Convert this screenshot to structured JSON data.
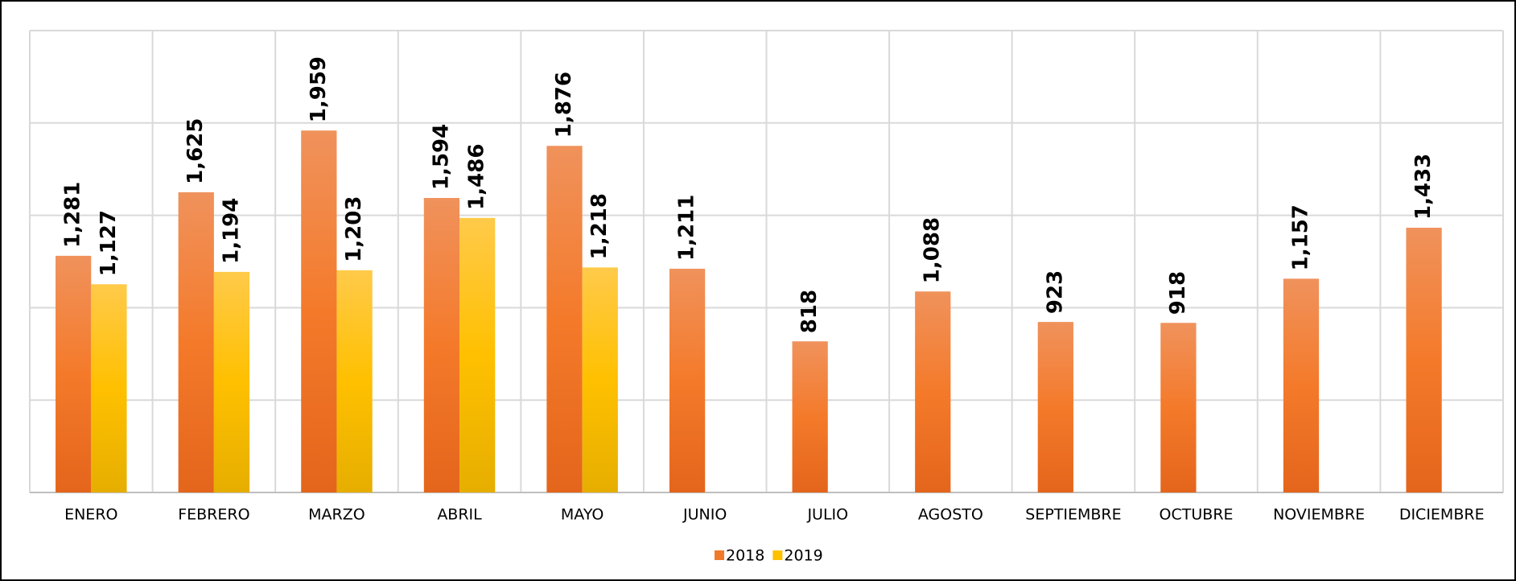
{
  "chart_data": {
    "type": "bar",
    "categories": [
      "ENERO",
      "FEBRERO",
      "MARZO",
      "ABRIL",
      "MAYO",
      "JUNIO",
      "JULIO",
      "AGOSTO",
      "SEPTIEMBRE",
      "OCTUBRE",
      "NOVIEMBRE",
      "DICIEMBRE"
    ],
    "series": [
      {
        "name": "2018",
        "color": "#f07a2a",
        "values": [
          1281,
          1625,
          1959,
          1594,
          1876,
          1211,
          818,
          1088,
          923,
          918,
          1157,
          1433
        ],
        "value_labels": [
          "1,281",
          "1,625",
          "1,959",
          "1,594",
          "1,876",
          "1,211",
          "818",
          "1,088",
          "923",
          "918",
          "1,157",
          "1,433"
        ]
      },
      {
        "name": "2019",
        "color": "#ffc000",
        "values": [
          1127,
          1194,
          1203,
          1486,
          1218,
          null,
          null,
          null,
          null,
          null,
          null,
          null
        ],
        "value_labels": [
          "1,127",
          "1,194",
          "1,203",
          "1,486",
          "1,218",
          null,
          null,
          null,
          null,
          null,
          null,
          null
        ]
      }
    ],
    "ylim": [
      0,
      2500
    ],
    "yticks": [
      0,
      500,
      1000,
      1500,
      2000,
      2500
    ],
    "grid": true,
    "legend": "bottom"
  }
}
